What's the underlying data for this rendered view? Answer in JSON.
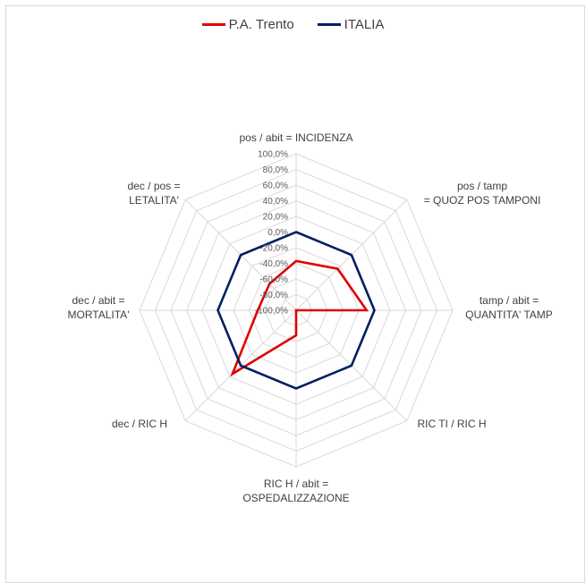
{
  "chart_data": {
    "type": "radar",
    "axes": [
      {
        "lines": [
          "pos / abit = INCIDENZA"
        ]
      },
      {
        "lines": [
          "pos / tamp",
          "= QUOZ POS TAMPONI"
        ]
      },
      {
        "lines": [
          "tamp / abit =",
          "QUANTITA' TAMP"
        ]
      },
      {
        "lines": [
          "RIC TI / RIC H"
        ]
      },
      {
        "lines": [
          "RIC H / abit =",
          "OSPEDALIZZAZIONE"
        ]
      },
      {
        "lines": [
          "dec  / RIC H"
        ]
      },
      {
        "lines": [
          "dec / abit =",
          "MORTALITA'"
        ]
      },
      {
        "lines": [
          "dec / pos =",
          "LETALITA'"
        ]
      }
    ],
    "ticks": [
      "100,0%",
      "80,0%",
      "60,0%",
      "40,0%",
      "20,0%",
      "0,0%",
      "-20,0%",
      "-40,0%",
      "-60,0%",
      "-80,0%",
      "-100,0%"
    ],
    "range": [
      -100,
      100
    ],
    "series": [
      {
        "name": "P.A. Trento",
        "color": "#e00000",
        "values": [
          -37,
          -25,
          -10,
          -100,
          -68,
          15,
          -51,
          -52
        ]
      },
      {
        "name": "ITALIA",
        "color": "#002060",
        "values": [
          0,
          0,
          0,
          0,
          0,
          0,
          0,
          0
        ]
      }
    ],
    "grid": true,
    "legend_position": "top"
  }
}
